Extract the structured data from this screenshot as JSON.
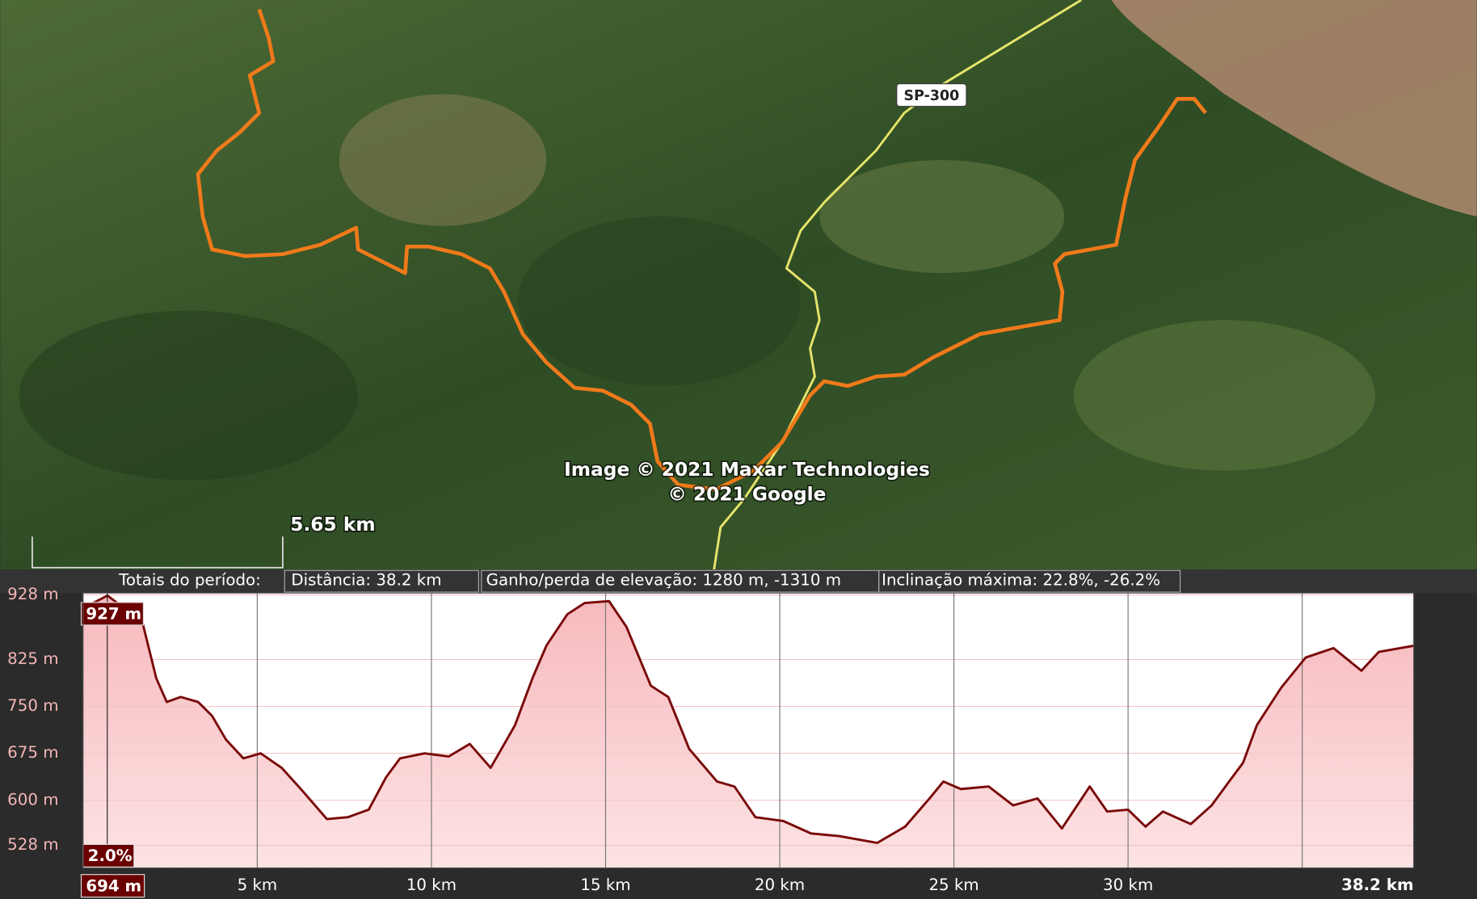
{
  "map": {
    "road_label": "SP-300",
    "attribution": [
      "Image © 2021 Maxar Technologies",
      "© 2021 Google"
    ],
    "scale_label": "5.65 km"
  },
  "stats": {
    "heading": "Totais do período:",
    "distance": "Distância: 38.2 km",
    "elevation": "Ganho/perda de elevação: 1280 m, -1310 m",
    "slope": "Inclinação máxima: 22.8%, -26.2%"
  },
  "chart_data": {
    "type": "area",
    "x": [
      0,
      0.7,
      1.7,
      2.1,
      2.4,
      2.8,
      3.3,
      3.7,
      4.1,
      4.6,
      5.1,
      5.7,
      6.3,
      7.0,
      7.6,
      8.2,
      8.7,
      9.1,
      9.8,
      10.5,
      11.1,
      11.7,
      12.4,
      12.9,
      13.3,
      13.9,
      14.4,
      15.1,
      15.6,
      16.3,
      16.8,
      17.4,
      18.2,
      18.7,
      19.3,
      20.1,
      20.9,
      21.7,
      22.8,
      23.6,
      24.3,
      24.7,
      25.2,
      26.0,
      26.7,
      27.4,
      28.1,
      28.9,
      29.4,
      30.0,
      30.5,
      31.0,
      31.8,
      32.4,
      32.9,
      33.3,
      33.7,
      34.4,
      35.1,
      35.9,
      36.7,
      37.2,
      38.2
    ],
    "values": [
      907,
      927,
      885,
      795,
      757,
      765,
      757,
      735,
      697,
      667,
      675,
      652,
      615,
      570,
      573,
      585,
      637,
      667,
      675,
      670,
      690,
      652,
      720,
      795,
      847,
      897,
      915,
      918,
      877,
      783,
      765,
      682,
      630,
      622,
      573,
      567,
      547,
      543,
      532,
      558,
      603,
      630,
      618,
      622,
      592,
      603,
      555,
      622,
      582,
      585,
      558,
      582,
      562,
      592,
      630,
      660,
      720,
      780,
      828,
      843,
      807,
      837,
      847
    ],
    "color": "#7a0a0a",
    "xlim": [
      0,
      38.2
    ],
    "xticks": [
      {
        "value": 5,
        "label": "5 km"
      },
      {
        "value": 10,
        "label": "10 km"
      },
      {
        "value": 15,
        "label": "15 km"
      },
      {
        "value": 20,
        "label": "20 km"
      },
      {
        "value": 25,
        "label": "25 km"
      },
      {
        "value": 30,
        "label": "30 km"
      },
      {
        "value": 38.2,
        "label": "38.2 km"
      }
    ],
    "xgrid": [
      5,
      10,
      15,
      20,
      25,
      30,
      35
    ],
    "ylim": [
      492,
      931
    ],
    "yticks": [
      {
        "value": 528,
        "label": "528 m"
      },
      {
        "value": 600,
        "label": "600 m"
      },
      {
        "value": 675,
        "label": "675 m"
      },
      {
        "value": 750,
        "label": "750 m"
      },
      {
        "value": 825,
        "label": "825 m"
      },
      {
        "value": 928,
        "label": "928 m"
      }
    ],
    "cursor": {
      "distance": 0.694,
      "distance_label": "694 m",
      "elevation": 927,
      "elevation_label": "927 m",
      "slope_label": "2.0%"
    }
  }
}
